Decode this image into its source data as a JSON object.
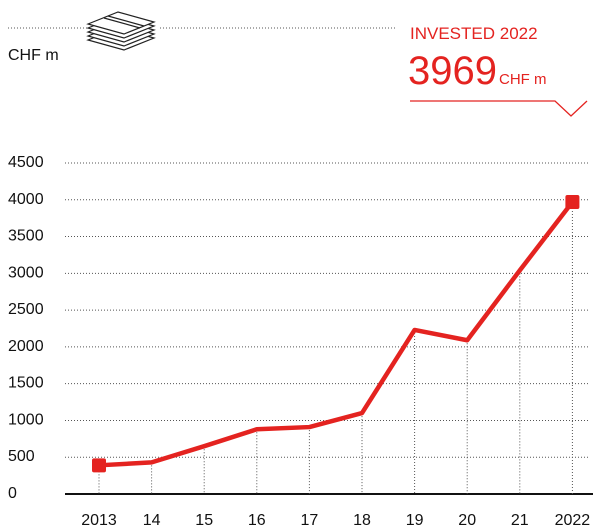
{
  "chart_data": {
    "type": "line",
    "y_label": "CHF m",
    "annotation": "INVESTED 2022",
    "categories": [
      "2013",
      "14",
      "15",
      "16",
      "17",
      "18",
      "19",
      "20",
      "21",
      "2022"
    ],
    "series": [
      {
        "name": "Invested",
        "color": "#e42320",
        "values": [
          390,
          430,
          650,
          880,
          910,
          1100,
          2230,
          2090,
          3040,
          3969
        ]
      }
    ],
    "ylim": [
      0,
      4500
    ],
    "yticks": [
      0,
      500,
      1000,
      1500,
      2000,
      2500,
      3000,
      3500,
      4000,
      4500
    ],
    "grid": true
  }
}
